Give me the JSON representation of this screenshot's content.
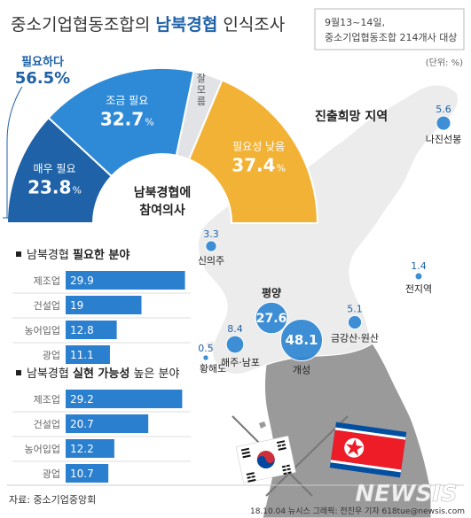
{
  "header": {
    "title_prefix": "중소기업협동조합의 ",
    "title_bold": "남북경협",
    "title_suffix": " 인식조사",
    "survey_period": "9월13~14일,",
    "survey_target": "중소기업협동조합 214개사 대상",
    "unit": "(단위: %)"
  },
  "colors": {
    "dark_blue": "#1f62a8",
    "mid_blue": "#2e8ad7",
    "light_gray": "#e1e3e6",
    "orange": "#f2b236",
    "bar_blue": "#2a7fcf",
    "map_land": "#ececec",
    "map_south": "#9a9a9a",
    "bubble": "#2f86d3"
  },
  "need_label": {
    "label": "필요하다",
    "value": "56.5%"
  },
  "donut_center": {
    "line1": "남북경협에",
    "line2": "참여의사"
  },
  "map_title": "진출희망 지역",
  "source": "자료: 중소기업중앙회",
  "footer": "18.10.04 뉴시스 그래픽: 전진우 기자  618tue@newsis.com",
  "watermark": "NEWSIS",
  "chart_data": [
    {
      "type": "pie",
      "title": "남북경협에 참여의사",
      "series": [
        {
          "labels": [
            "매우 필요",
            "조금 필요",
            "잘 모름",
            "필요성 낮음"
          ],
          "label_display": [
            "매우 필요",
            "조금 필요",
            "잘\n모\n름",
            "필요성 낮음"
          ],
          "values": [
            23.8,
            32.7,
            6.1,
            37.4
          ],
          "value_labels": [
            "23.8",
            "32.7",
            "6.1",
            "37.4"
          ]
        }
      ]
    },
    {
      "type": "bar",
      "title": "남북경협 필요한 분야",
      "title_plain": "남북경협 ",
      "title_bold": "필요한 분야",
      "categories": [
        "제조업",
        "건설업",
        "농어입업",
        "광업"
      ],
      "values": [
        29.9,
        19,
        12.8,
        11.1
      ],
      "value_labels": [
        "29.9",
        "19",
        "12.8",
        "11.1"
      ]
    },
    {
      "type": "bar",
      "title": "남북경협 실현 가능성 높은 분야",
      "title_plain": "남북경협 ",
      "title_bold": "실현 가능성",
      "title_suffix": " 높은 분야",
      "categories": [
        "제조업",
        "건설업",
        "농어입업",
        "광업"
      ],
      "values": [
        29.2,
        20.7,
        12.2,
        10.7
      ],
      "value_labels": [
        "29.2",
        "20.7",
        "12.2",
        "10.7"
      ]
    },
    {
      "type": "scatter",
      "title": "진출희망 지역",
      "points": [
        {
          "name": "나진선봉",
          "value": 5.6,
          "label": "5.6"
        },
        {
          "name": "신의주",
          "value": 3.3,
          "label": "3.3"
        },
        {
          "name": "전지역",
          "value": 1.4,
          "label": "1.4"
        },
        {
          "name": "평양",
          "value": 27.6,
          "label": "27.6"
        },
        {
          "name": "금강산·원산",
          "value": 5.1,
          "label": "5.1"
        },
        {
          "name": "개성",
          "value": 48.1,
          "label": "48.1"
        },
        {
          "name": "해주·남포",
          "value": 8.4,
          "label": "8.4"
        },
        {
          "name": "황해도",
          "value": 0.5,
          "label": "0.5"
        }
      ]
    }
  ]
}
